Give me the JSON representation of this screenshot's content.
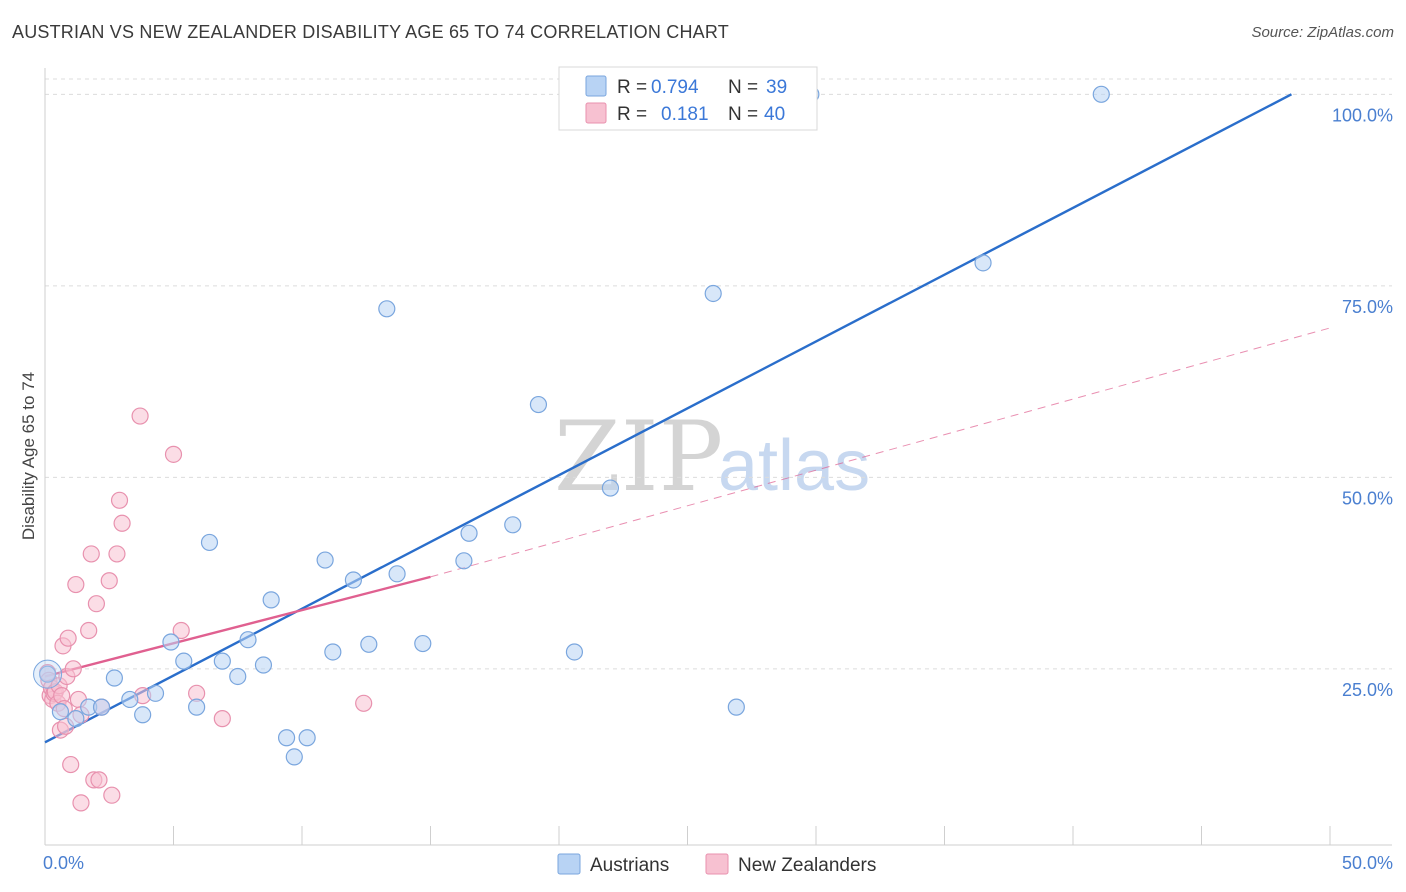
{
  "title": "AUSTRIAN VS NEW ZEALANDER DISABILITY AGE 65 TO 74 CORRELATION CHART",
  "source": "Source: ZipAtlas.com",
  "watermark": {
    "zip": "ZIP",
    "atlas": "atlas"
  },
  "colors": {
    "blue_fill": "#b8d3f4",
    "blue_stroke": "#7aa6de",
    "blue_line": "#2a6ecb",
    "pink_fill": "#f7c1d1",
    "pink_stroke": "#e891ae",
    "pink_line": "#e06090",
    "tick_text": "#4a7fd0",
    "grid": "#dcdcdc"
  },
  "legend_top": [
    {
      "r_label": "R =",
      "r_value": "0.794",
      "n_label": "N =",
      "n_value": "39",
      "series": "Austrians"
    },
    {
      "r_label": "R =",
      "r_value": "0.181",
      "n_label": "N =",
      "n_value": "40",
      "series": "New Zealanders"
    }
  ],
  "legend_bottom": [
    "Austrians",
    "New Zealanders"
  ],
  "chart_data": {
    "type": "scatter",
    "title": "AUSTRIAN VS NEW ZEALANDER DISABILITY AGE 65 TO 74 CORRELATION CHART",
    "xlabel": "",
    "ylabel": "Disability Age 65 to 74",
    "xlim": [
      0,
      50
    ],
    "ylim": [
      2,
      102
    ],
    "x_tick_labels": [
      {
        "value": 0,
        "label": "0.0%"
      },
      {
        "value": 50,
        "label": "50.0%"
      }
    ],
    "x_minor_ticks": [
      0,
      5,
      10,
      15,
      20,
      25,
      30,
      35,
      40,
      45,
      50
    ],
    "y_ticks": [
      {
        "value": 25,
        "label": "25.0%"
      },
      {
        "value": 50,
        "label": "50.0%"
      },
      {
        "value": 75,
        "label": "75.0%"
      },
      {
        "value": 100,
        "label": "100.0%"
      }
    ],
    "grid": true,
    "series": [
      {
        "name": "Austrians",
        "r": 0.794,
        "n": 39,
        "points": [
          [
            0.1,
            24.3
          ],
          [
            0.6,
            19.4
          ],
          [
            1.2,
            18.5
          ],
          [
            1.7,
            20.0
          ],
          [
            2.2,
            20.0
          ],
          [
            2.7,
            23.8
          ],
          [
            3.3,
            21.0
          ],
          [
            3.8,
            19.0
          ],
          [
            4.3,
            21.8
          ],
          [
            4.9,
            28.5
          ],
          [
            5.4,
            26.0
          ],
          [
            5.9,
            20.0
          ],
          [
            6.4,
            41.5
          ],
          [
            6.9,
            26.0
          ],
          [
            7.5,
            24.0
          ],
          [
            7.9,
            28.8
          ],
          [
            8.5,
            25.5
          ],
          [
            8.8,
            34.0
          ],
          [
            9.4,
            16.0
          ],
          [
            9.7,
            13.5
          ],
          [
            10.2,
            16.0
          ],
          [
            10.9,
            39.2
          ],
          [
            11.2,
            27.2
          ],
          [
            12.0,
            36.6
          ],
          [
            12.6,
            28.2
          ],
          [
            13.3,
            72.0
          ],
          [
            13.7,
            37.4
          ],
          [
            14.7,
            28.3
          ],
          [
            16.3,
            39.1
          ],
          [
            16.5,
            42.7
          ],
          [
            18.2,
            43.8
          ],
          [
            19.2,
            59.5
          ],
          [
            20.6,
            27.2
          ],
          [
            22.0,
            48.6
          ],
          [
            26.0,
            74.0
          ],
          [
            26.9,
            20.0
          ],
          [
            29.8,
            100.0
          ],
          [
            36.5,
            78.0
          ],
          [
            41.1,
            100.0
          ]
        ],
        "trend": {
          "x": [
            0,
            48.5
          ],
          "y": [
            15.4,
            100.0
          ],
          "style": "solid"
        }
      },
      {
        "name": "New Zealanders",
        "r": 0.181,
        "n": 40,
        "points": [
          [
            0.1,
            24.5
          ],
          [
            0.15,
            23.5
          ],
          [
            0.2,
            21.5
          ],
          [
            0.25,
            22.5
          ],
          [
            0.3,
            21.0
          ],
          [
            0.35,
            21.8
          ],
          [
            0.4,
            22.0
          ],
          [
            0.5,
            20.5
          ],
          [
            0.55,
            22.8
          ],
          [
            0.6,
            17.0
          ],
          [
            0.65,
            21.5
          ],
          [
            0.7,
            28.0
          ],
          [
            0.75,
            19.8
          ],
          [
            0.8,
            17.5
          ],
          [
            0.85,
            24.0
          ],
          [
            0.9,
            29.0
          ],
          [
            1.0,
            12.5
          ],
          [
            1.1,
            25.0
          ],
          [
            1.2,
            36.0
          ],
          [
            1.3,
            21.0
          ],
          [
            1.4,
            19.0
          ],
          [
            1.4,
            7.5
          ],
          [
            1.7,
            30.0
          ],
          [
            1.8,
            40.0
          ],
          [
            1.9,
            10.5
          ],
          [
            2.0,
            33.5
          ],
          [
            2.1,
            10.5
          ],
          [
            2.2,
            20.0
          ],
          [
            2.5,
            36.5
          ],
          [
            2.6,
            8.5
          ],
          [
            2.8,
            40.0
          ],
          [
            2.9,
            47.0
          ],
          [
            3.0,
            44.0
          ],
          [
            3.7,
            58.0
          ],
          [
            3.8,
            21.5
          ],
          [
            5.0,
            53.0
          ],
          [
            5.3,
            30.0
          ],
          [
            5.9,
            21.8
          ],
          [
            6.9,
            18.5
          ],
          [
            12.4,
            20.5
          ]
        ],
        "trend": {
          "x": [
            0,
            15
          ],
          "y": [
            24.0,
            37.0
          ],
          "style": "solid"
        },
        "trend_extension": {
          "x": [
            15,
            50
          ],
          "y": [
            37.0,
            69.5
          ],
          "style": "dashed"
        }
      }
    ]
  }
}
